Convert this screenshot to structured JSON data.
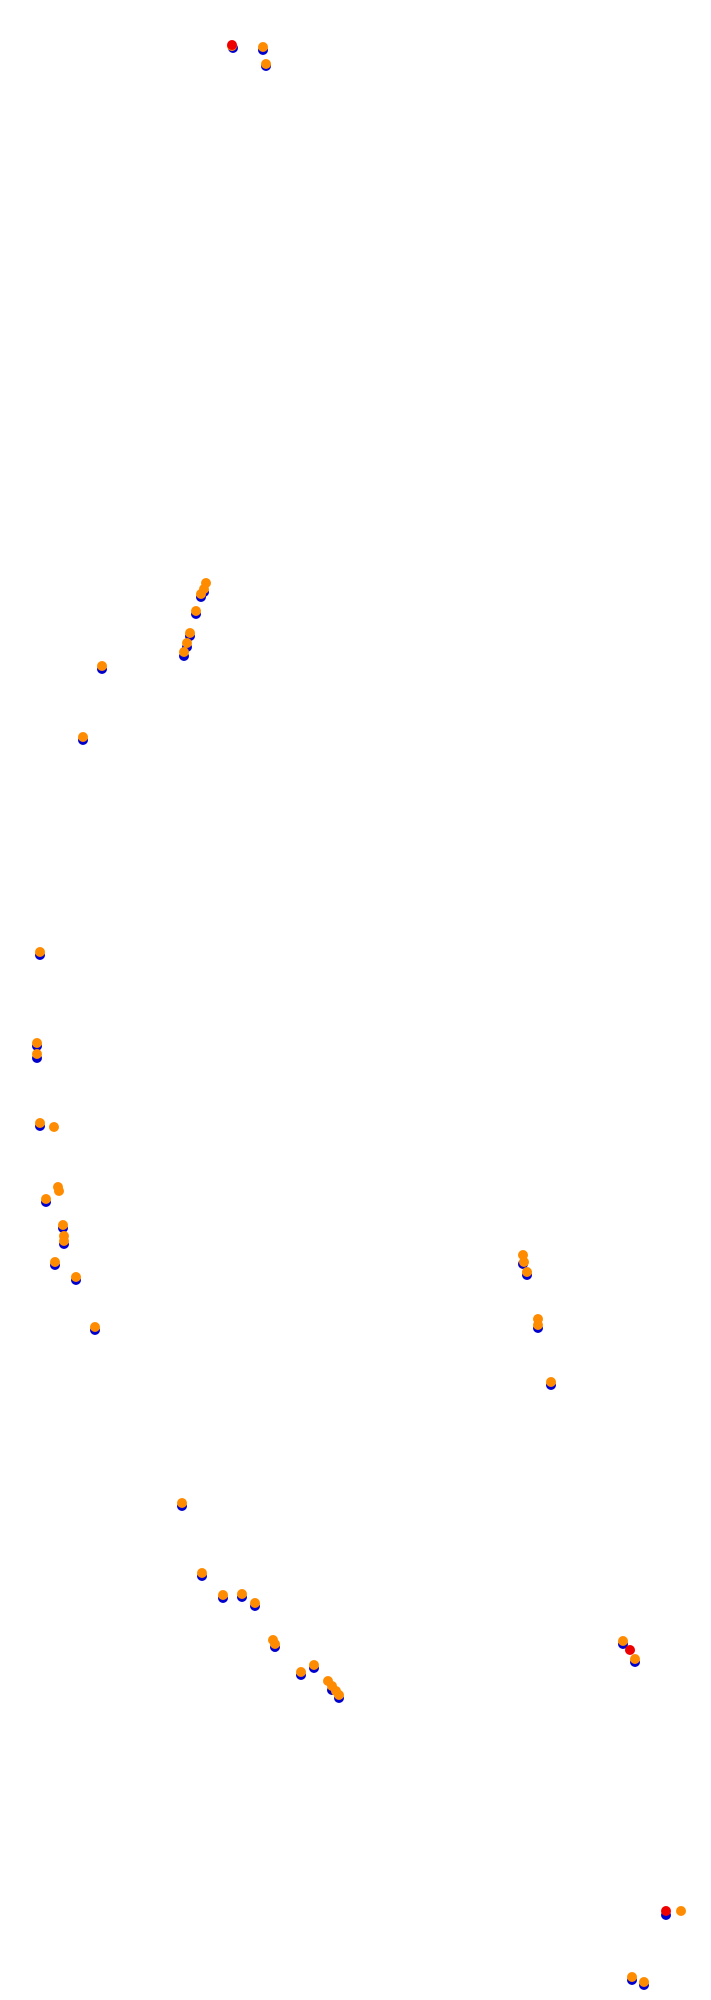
{
  "chart_data": {
    "type": "scatter",
    "series": [
      {
        "color": "#0000cc",
        "x": [
          233,
          263,
          266,
          204,
          201,
          196,
          190,
          187,
          184,
          102,
          83,
          40,
          37,
          37,
          40,
          46,
          63,
          64,
          55,
          76,
          95,
          523,
          527,
          538,
          551,
          182,
          202,
          223,
          242,
          255,
          275,
          301,
          314,
          332,
          339,
          623,
          635,
          666,
          632,
          644
        ],
        "values": [
          48,
          50,
          66,
          592,
          597,
          614,
          636,
          647,
          656,
          669,
          740,
          955,
          1046,
          1058,
          1126,
          1202,
          1228,
          1244,
          1265,
          1280,
          1330,
          1264,
          1275,
          1328,
          1385,
          1506,
          1576,
          1598,
          1597,
          1606,
          1647,
          1675,
          1668,
          1690,
          1698,
          1644,
          1662,
          1915,
          1980,
          1985
        ]
      },
      {
        "color": "#ff8c00",
        "x": [
          232,
          263,
          266,
          206,
          204,
          201,
          196,
          190,
          187,
          184,
          102,
          83,
          40,
          37,
          37,
          40,
          54,
          58,
          59,
          46,
          63,
          64,
          64,
          55,
          76,
          95,
          523,
          524,
          527,
          538,
          538,
          551,
          182,
          202,
          223,
          242,
          255,
          273,
          275,
          301,
          314,
          328,
          332,
          336,
          339,
          623,
          635,
          681,
          632,
          644
        ],
        "values": [
          46,
          47,
          64,
          583,
          589,
          594,
          611,
          633,
          643,
          652,
          666,
          737,
          952,
          1043,
          1054,
          1123,
          1127,
          1187,
          1191,
          1199,
          1225,
          1236,
          1241,
          1262,
          1277,
          1327,
          1255,
          1262,
          1272,
          1319,
          1325,
          1382,
          1503,
          1573,
          1595,
          1594,
          1603,
          1640,
          1644,
          1672,
          1665,
          1681,
          1686,
          1691,
          1695,
          1641,
          1659,
          1911,
          1977,
          1982
        ]
      },
      {
        "color": "#ee0000",
        "x": [
          232,
          630,
          666
        ],
        "values": [
          45,
          1650,
          1911
        ]
      }
    ]
  }
}
